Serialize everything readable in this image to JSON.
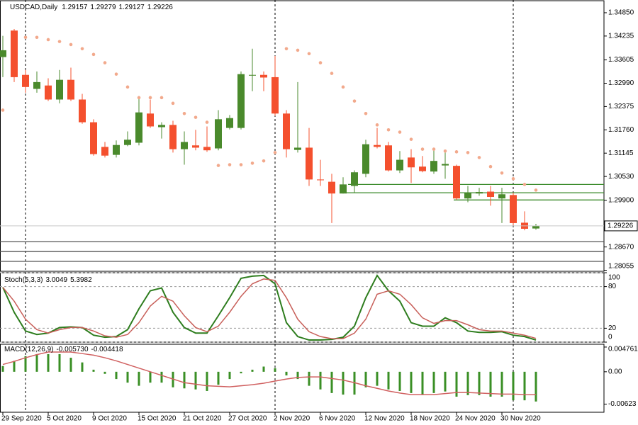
{
  "chart_data": [
    {
      "type": "candlestick",
      "title": "USDCAD,Daily",
      "categories": [
        "29 Sep 2020",
        null,
        null,
        null,
        "5 Oct 2020",
        null,
        null,
        null,
        "9 Oct 2020",
        null,
        null,
        null,
        "15 Oct 2020",
        null,
        null,
        null,
        "21 Oct 2020",
        null,
        null,
        null,
        "27 Oct 2020",
        null,
        null,
        null,
        "2 Nov 2020",
        null,
        null,
        null,
        "6 Nov 2020",
        null,
        null,
        null,
        "12 Nov 2020",
        null,
        null,
        null,
        "18 Nov 2020",
        null,
        null,
        null,
        "24 Nov 2020",
        null,
        null,
        null,
        "30 Nov 2020",
        null,
        null,
        null
      ],
      "open": [
        1.3368,
        1.3438,
        1.3321,
        1.3284,
        1.3293,
        1.3256,
        1.3308,
        1.3256,
        1.3196,
        1.3131,
        1.311,
        1.3136,
        1.3142,
        1.3219,
        1.3183,
        1.3189,
        1.3125,
        1.3135,
        1.3131,
        1.3127,
        1.3181,
        1.3181,
        1.3319,
        1.3321,
        1.3315,
        1.3219,
        1.3123,
        1.3129,
        1.3045,
        1.3039,
        1.3008,
        1.3028,
        1.306,
        1.3136,
        1.3135,
        1.3069,
        1.3103,
        1.3079,
        1.3066,
        1.3082,
        1.3081,
        1.2995,
        1.3008,
        1.3013,
        1.2995,
        1.3004,
        1.2931,
        1.29157
      ],
      "high": [
        1.3424,
        1.3442,
        1.3334,
        1.333,
        1.3312,
        1.3334,
        1.334,
        1.3271,
        1.3204,
        1.3144,
        1.3148,
        1.3172,
        1.3265,
        1.3256,
        1.3196,
        1.32,
        1.3172,
        1.3176,
        1.3185,
        1.3228,
        1.3215,
        1.333,
        1.339,
        1.333,
        1.3371,
        1.3228,
        1.3302,
        1.3181,
        1.3097,
        1.306,
        1.3051,
        1.3069,
        1.315,
        1.3181,
        1.3144,
        1.312,
        1.3125,
        1.3107,
        1.3129,
        1.3116,
        1.3084,
        1.3028,
        1.3023,
        1.3028,
        1.3023,
        1.301,
        1.2961,
        1.29279
      ],
      "low": [
        1.3315,
        1.3302,
        1.3274,
        1.3274,
        1.3252,
        1.3246,
        1.3252,
        1.3192,
        1.3108,
        1.3103,
        1.3103,
        1.3133,
        1.3135,
        1.3181,
        1.3153,
        1.3116,
        1.3084,
        1.3122,
        1.3118,
        1.3122,
        1.3177,
        1.3177,
        1.3278,
        1.3278,
        1.3213,
        1.3103,
        1.3116,
        1.3028,
        1.3028,
        1.293,
        1.3008,
        1.301,
        1.3051,
        1.3127,
        1.3066,
        1.3062,
        1.3036,
        1.3064,
        1.306,
        1.3047,
        1.2991,
        1.2985,
        1.3002,
        1.2976,
        1.293,
        1.2924,
        1.2911,
        1.29127
      ],
      "close": [
        1.3386,
        1.3315,
        1.3289,
        1.3302,
        1.3256,
        1.3308,
        1.3256,
        1.3196,
        1.3112,
        1.3108,
        1.3136,
        1.315,
        1.3222,
        1.3185,
        1.3189,
        1.3125,
        1.3144,
        1.3129,
        1.3122,
        1.3204,
        1.3207,
        1.3323,
        1.3321,
        1.3314,
        1.3219,
        1.3125,
        1.3129,
        1.3045,
        1.3043,
        1.3008,
        1.3032,
        1.3064,
        1.3138,
        1.3131,
        1.3069,
        1.3097,
        1.3077,
        1.3067,
        1.3094,
        1.3086,
        1.2995,
        1.301,
        1.3012,
        1.2999,
        1.3006,
        1.293,
        1.2915,
        1.29226
      ],
      "up_color": "#4a8a2c",
      "down_color": "#f4502e",
      "sar": {
        "color": "#f2a98c",
        "values": [
          1.3228,
          null,
          1.342,
          1.342,
          1.3414,
          1.3409,
          1.3401,
          1.339,
          1.3375,
          1.3353,
          1.3323,
          1.3289,
          1.3261,
          1.3261,
          1.3261,
          1.3246,
          1.3219,
          1.3209,
          1.3196,
          1.3082,
          1.3084,
          1.3084,
          1.3088,
          1.3094,
          1.3116,
          1.339,
          1.3386,
          1.3377,
          1.3353,
          1.3325,
          1.3289,
          1.3252,
          1.3219,
          1.3189,
          1.3176,
          1.317,
          1.3151,
          1.3125,
          1.3125,
          1.312,
          1.3118,
          1.3116,
          1.3103,
          1.3079,
          1.3062,
          1.3047,
          1.3032,
          1.3017
        ]
      },
      "levels": [
        {
          "value": 1.3032,
          "color": "#3a8a2a"
        },
        {
          "value": 1.301,
          "color": "#3a8a2a"
        },
        {
          "value": 1.2991,
          "color": "#3a8a2a"
        },
        {
          "value": 1.2881,
          "color": "#555555"
        },
        {
          "value": 1.2855,
          "color": "#555555"
        },
        {
          "value": 1.2829,
          "color": "#555555"
        }
      ],
      "ylim": [
        1.28028,
        1.35167
      ],
      "yticks": [
        {
          "value": 1.3485,
          "label": "1.34850"
        },
        {
          "value": 1.34235,
          "label": "1.34235"
        },
        {
          "value": 1.33605,
          "label": "1.33605"
        },
        {
          "value": 1.3299,
          "label": "1.32990"
        },
        {
          "value": 1.32375,
          "label": "1.32375"
        },
        {
          "value": 1.3176,
          "label": "1.31760"
        },
        {
          "value": 1.31145,
          "label": "1.31145"
        },
        {
          "value": 1.3053,
          "label": "1.30530"
        },
        {
          "value": 1.299,
          "label": "1.29900"
        },
        {
          "value": 1.2867,
          "label": "1.28670"
        },
        {
          "value": 1.28055,
          "label": "1.28055"
        }
      ]
    },
    {
      "type": "line",
      "title": "Stoch(5,3,3)",
      "series": [
        {
          "color": "#2e7d1e",
          "values": [
            79,
            43,
            16,
            11,
            13,
            21,
            22,
            21,
            10,
            7,
            8,
            18,
            48,
            74,
            78,
            43,
            21,
            13,
            13,
            38,
            64,
            92,
            95,
            96,
            84,
            28,
            8,
            3,
            3,
            4,
            7,
            23,
            64,
            96,
            74,
            59,
            28,
            23,
            23,
            35,
            28,
            16,
            14,
            14,
            15,
            10,
            8,
            3.0049
          ]
        },
        {
          "color": "#c8605a",
          "values": [
            79,
            59,
            33,
            18,
            13,
            18,
            21,
            21,
            16,
            9,
            7,
            11,
            28,
            52,
            66,
            59,
            38,
            21,
            15,
            23,
            43,
            66,
            84,
            91,
            89,
            64,
            33,
            15,
            8,
            5,
            5,
            13,
            33,
            69,
            74,
            69,
            54,
            35,
            27,
            31,
            31,
            25,
            18,
            16,
            16,
            13,
            10,
            5.3982
          ]
        }
      ],
      "ylim": [
        0,
        100
      ],
      "yticks": [
        100,
        80,
        20,
        0
      ],
      "grid": true
    },
    {
      "type": "macd",
      "title": "MACD(12,26,9)",
      "histogram": {
        "color": "#3a8f25",
        "current_label": "-0.005730",
        "values": [
          0.0011,
          0.0021,
          0.003,
          0.0034,
          0.0034,
          0.0034,
          0.0027,
          0.0018,
          0.0004,
          -0.0004,
          -0.0014,
          -0.0021,
          -0.0027,
          -0.0021,
          -0.0021,
          -0.003,
          -0.0032,
          -0.0034,
          -0.0037,
          -0.0025,
          -0.0014,
          -0.0003,
          0.0004,
          0.001,
          0.0007,
          -0.0007,
          -0.0014,
          -0.0027,
          -0.0034,
          -0.0041,
          -0.0044,
          -0.0044,
          -0.003,
          -0.0027,
          -0.0034,
          -0.0037,
          -0.0041,
          -0.0044,
          -0.0041,
          -0.0038,
          -0.0048,
          -0.0045,
          -0.0045,
          -0.0048,
          -0.0048,
          -0.0055,
          -0.0055,
          -0.00573
        ]
      },
      "signal": {
        "color": "#d06060",
        "values": [
          0.0014,
          0.002,
          0.0027,
          0.0033,
          0.0038,
          0.0038,
          0.0038,
          0.0035,
          0.0032,
          0.0027,
          0.0021,
          0.0014,
          0.0007,
          0,
          -0.0007,
          -0.0014,
          -0.0021,
          -0.0024,
          -0.0027,
          -0.0028,
          -0.0029,
          -0.0027,
          -0.0025,
          -0.0022,
          -0.0018,
          -0.0014,
          -0.0011,
          -0.001,
          -0.001,
          -0.0013,
          -0.0016,
          -0.0021,
          -0.0027,
          -0.0032,
          -0.0037,
          -0.0041,
          -0.0044,
          -0.0044,
          -0.0044,
          -0.0042,
          -0.004,
          -0.004,
          -0.0041,
          -0.0042,
          -0.0043,
          -0.0043,
          -0.0044,
          -0.004418
        ]
      },
      "ylim": [
        -0.0078,
        0.0053
      ],
      "yticks": [
        0.004761,
        {
          "value": 0,
          "label": "0.00"
        },
        -0.00623
      ]
    }
  ]
}
